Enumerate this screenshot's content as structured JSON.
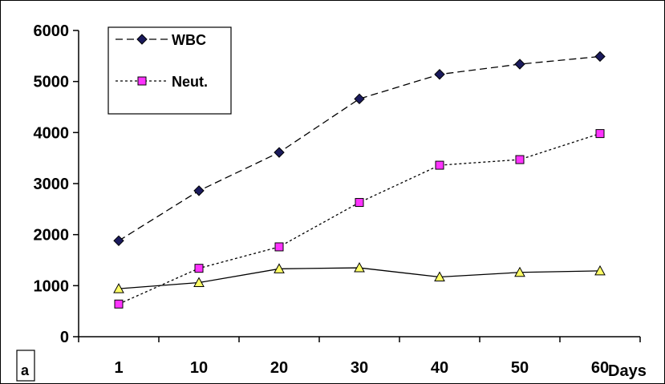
{
  "chart_data": {
    "type": "line",
    "panel_label": "a",
    "xlabel": "Days",
    "ylabel": "",
    "categories": [
      "1",
      "10",
      "20",
      "30",
      "40",
      "50",
      "60"
    ],
    "ylim": [
      0,
      6000
    ],
    "yticks": [
      0,
      1000,
      2000,
      3000,
      4000,
      5000,
      6000
    ],
    "grid": false,
    "legend_position": "top-left",
    "series": [
      {
        "name": "WBC",
        "values": [
          1880,
          2860,
          3610,
          4660,
          5140,
          5340,
          5490
        ],
        "marker": "diamond",
        "line_style": "dashed",
        "color": "#000000",
        "marker_fill": "#1a1a5c"
      },
      {
        "name": "Neut.",
        "values": [
          640,
          1340,
          1760,
          2630,
          3360,
          3470,
          3980
        ],
        "marker": "square",
        "line_style": "dotted",
        "color": "#000000",
        "marker_fill": "#ff33ff"
      },
      {
        "values": [
          940,
          1060,
          1330,
          1350,
          1170,
          1260,
          1290
        ],
        "marker": "triangle",
        "line_style": "solid",
        "color": "#000000",
        "marker_fill": "#ffff66"
      }
    ]
  }
}
